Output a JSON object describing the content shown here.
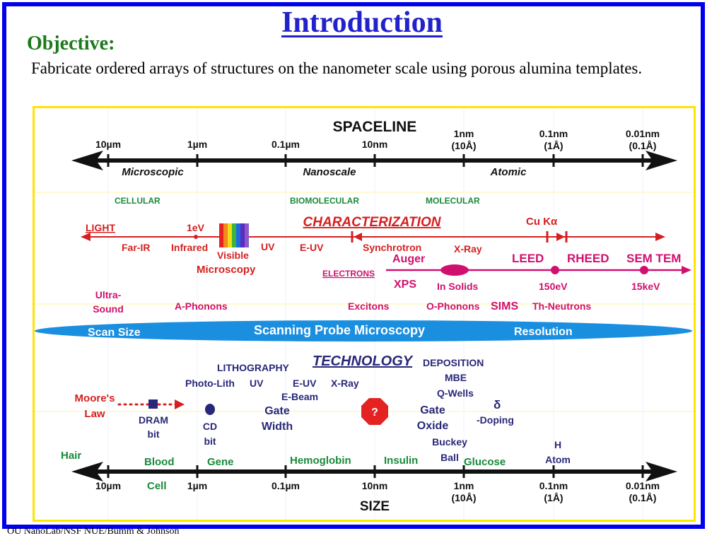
{
  "slide": {
    "title": "Introduction",
    "objective_label": "Objective:",
    "description": "Fabricate ordered arrays of structures on the nanometer scale using porous alumina templates.",
    "footer": "OU NanoLab/NSF NUE/Bumm & Johnson"
  },
  "colors": {
    "frame": "#0000ee",
    "title": "#2222cc",
    "green": "#1a7a1a",
    "diagram_border": "#ffe400",
    "red": "#d42020",
    "magenta": "#d0106e",
    "navy": "#28287a",
    "ellipse": "#1a8fe0"
  },
  "diagram": {
    "spaceline_title": "SPACELINE",
    "top_ticks": {
      "t10um": "10µm",
      "t1um": "1µm",
      "t01um": "0.1µm",
      "t10nm": "10nm",
      "t1nm_a": "1nm",
      "t1nm_b": "(10Å)",
      "t01nm_a": "0.1nm",
      "t01nm_b": "(1Å)",
      "t001nm_a": "0.01nm",
      "t001nm_b": "(0.1Å)"
    },
    "regions": {
      "microscopic": "Microscopic",
      "nanoscale": "Nanoscale",
      "atomic": "Atomic"
    },
    "categories": {
      "cellular": "CELLULAR",
      "biomolecular": "BIOMOLECULAR",
      "molecular": "MOLECULAR"
    },
    "characterization": {
      "title": "CHARACTERIZATION",
      "light": "LIGHT",
      "ev": "1eV",
      "cuka": "Cu Kα",
      "far_ir": "Far-IR",
      "infrared": "Infrared",
      "visible": "Visible",
      "uv": "UV",
      "euv": "E-UV",
      "synchrotron": "Synchrotron",
      "xray": "X-Ray",
      "microscopy": "Microscopy",
      "auger": "Auger",
      "electrons": "ELECTRONS",
      "leed": "LEED",
      "rheed": "RHEED",
      "semtem": "SEM TEM",
      "xps": "XPS",
      "in_solids": "In Solids",
      "ev150": "150eV",
      "kev15": "15keV",
      "ultra_1": "Ultra-",
      "ultra_2": "Sound",
      "aphonons": "A-Phonons",
      "excitons": "Excitons",
      "ophonons": "O-Phonons",
      "sims": "SIMS",
      "thneutrons": "Th-Neutrons"
    },
    "spm": {
      "scan_size": "Scan Size",
      "title": "Scanning Probe Microscopy",
      "resolution": "Resolution"
    },
    "technology": {
      "title": "TECHNOLOGY",
      "lithography": "LITHOGRAPHY",
      "photolith": "Photo-Lith",
      "uv": "UV",
      "euv": "E-UV",
      "xray": "X-Ray",
      "ebeam": "E-Beam",
      "deposition": "DEPOSITION",
      "mbe": "MBE",
      "qwells": "Q-Wells",
      "delta": "δ",
      "doping": "-Doping",
      "moores_1": "Moore's",
      "moores_2": "Law",
      "dram_1": "DRAM",
      "dram_2": "bit",
      "cd_1": "CD",
      "cd_2": "bit",
      "gate_1": "Gate",
      "gate_2": "Width",
      "stop": "?",
      "oxide_1": "Gate",
      "oxide_2": "Oxide"
    },
    "size": {
      "hair": "Hair",
      "blood": "Blood",
      "cell": "Cell",
      "gene": "Gene",
      "hemoglobin": "Hemoglobin",
      "insulin": "Insulin",
      "buckey_1": "Buckey",
      "buckey_2": "Ball",
      "glucose": "Glucose",
      "h_1": "H",
      "h_2": "Atom",
      "title": "SIZE"
    },
    "bottom_ticks": {
      "t10um": "10µm",
      "t1um": "1µm",
      "t01um": "0.1µm",
      "t10nm": "10nm",
      "t1nm_a": "1nm",
      "t1nm_b": "(10Å)",
      "t01nm_a": "0.1nm",
      "t01nm_b": "(1Å)",
      "t001nm_a": "0.01nm",
      "t001nm_b": "(0.1Å)"
    }
  }
}
